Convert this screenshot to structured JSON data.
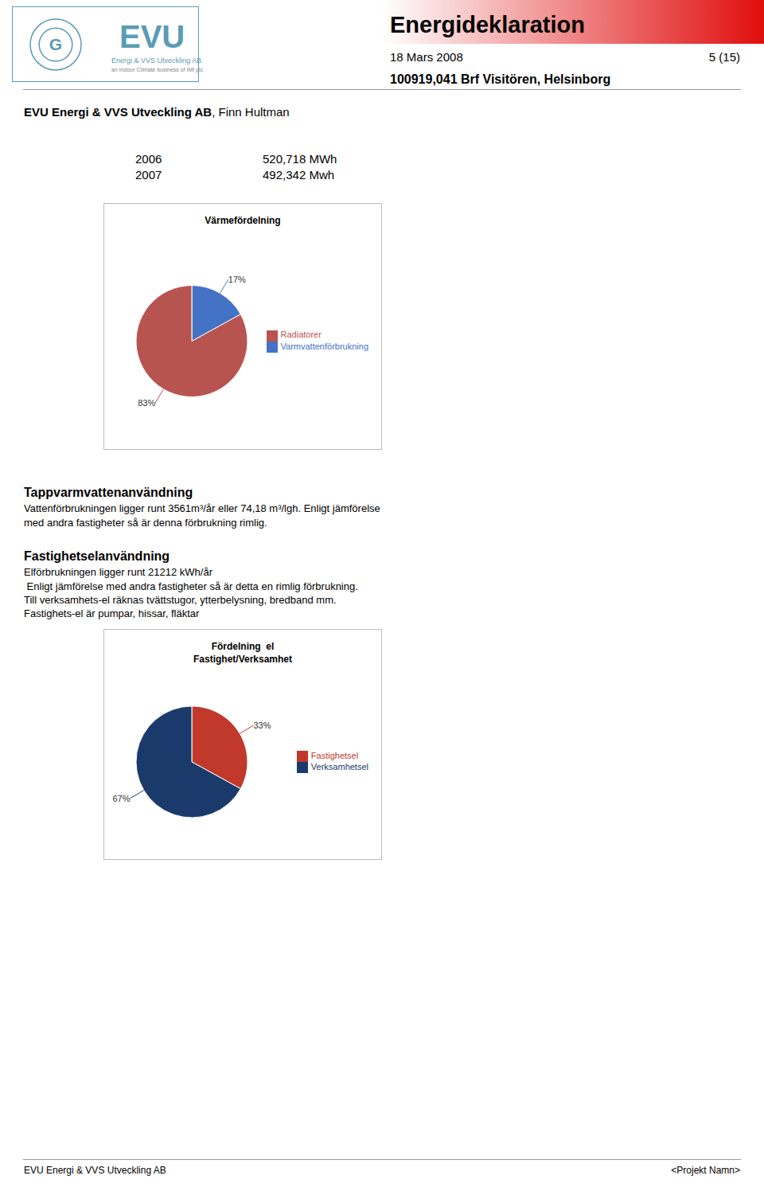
{
  "chart_data": [
    {
      "type": "pie",
      "title": "Värmefördelning",
      "categories": [
        "Varmvattenförbrukning",
        "Radiatorer"
      ],
      "values": [
        17,
        83
      ],
      "value_labels": [
        "17%",
        "83%"
      ],
      "data_labels": true,
      "colors": [
        "#4472C4",
        "#B85450"
      ],
      "legend": "right",
      "annotations": [
        "G",
        "EVU",
        "Energi & VVS Utveckling AB",
        "an Indoor Climate business of IMI plc",
        "Energideklaration",
        "18 Mars 2008",
        "5 (15)",
        "100919,041 Brf Visitören, Helsinborg",
        "EVU Energi & VVS Utveckling AB",
        ", Finn Hultman",
        "2006",
        "520,718 MWh",
        "2007",
        "492,342 Mwh",
        "Tappvarmvattenanvändning",
        "Vattenförbrukningen ligger runt 3561m³/år eller 74,18 m³/lgh. Enligt jämförelse",
        "med andra fastigheter så är denna förbrukning rimlig."
      ]
    },
    {
      "type": "pie",
      "title": "Fördelning  el",
      "subtitle": "Fastighet/Verksamhet",
      "categories": [
        "Fastighetsel",
        "Verksamhetsel"
      ],
      "values": [
        33,
        67
      ],
      "value_labels": [
        "33%",
        "67%"
      ],
      "data_labels": true,
      "colors": [
        "#C0392B",
        "#1A3A6B"
      ],
      "legend": "right",
      "annotations": [
        "Fastighetselanvändning",
        "Elförbrukningen ligger runt 21212 kWh/år",
        " Enligt jämförelse med andra fastigheter så är detta en rimlig förbrukning.",
        "Till verksamhets-el räknas tvättstugor, ytterbelysning, bredband mm.",
        "Fastighets-el är pumpar, hissar, fläktar",
        "EVU Energi & VVS Utveckling AB",
        "<Projekt Namn>"
      ]
    }
  ]
}
